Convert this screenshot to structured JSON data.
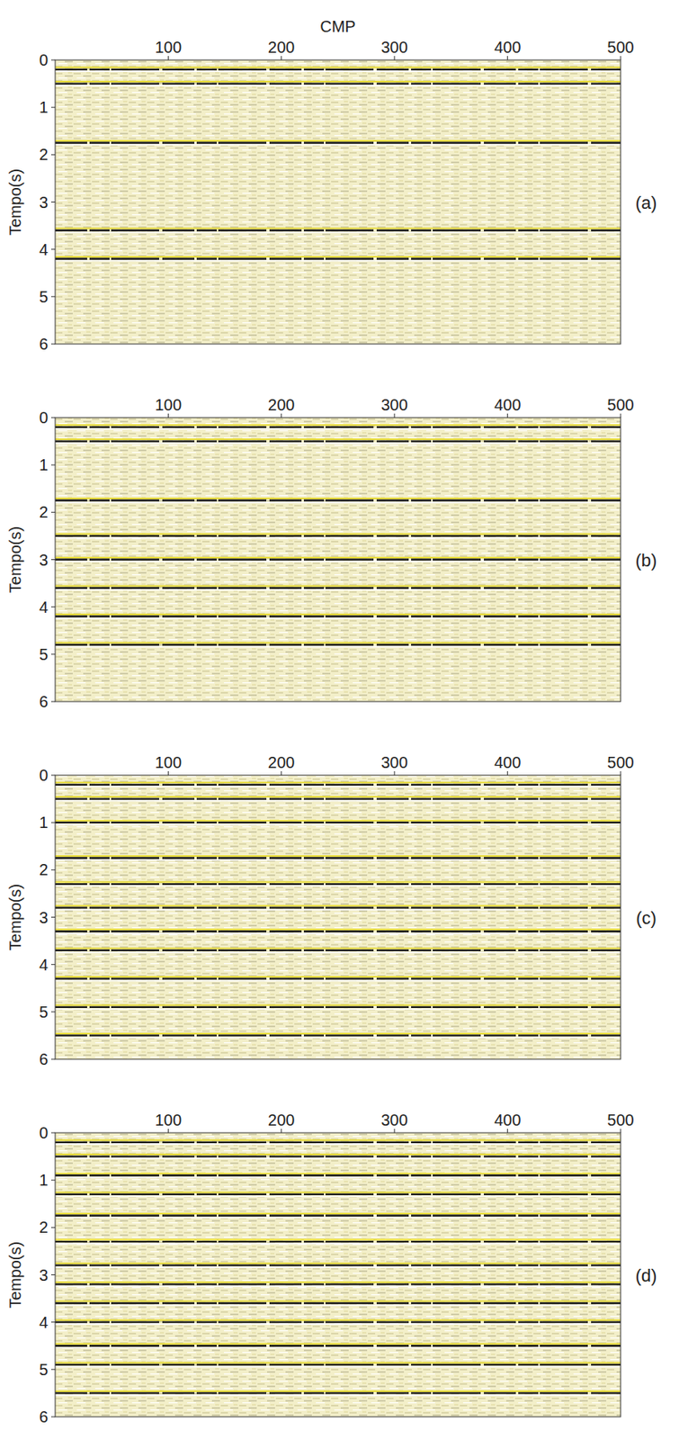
{
  "chart_data": [
    {
      "type": "seismic",
      "panel_label": "(a)",
      "x_label": "CMP",
      "y_label": "Tempo(s)",
      "xlim": [
        0,
        500
      ],
      "xticks": [
        100,
        200,
        300,
        400,
        500
      ],
      "ylim": [
        0,
        6
      ],
      "yticks": [
        0,
        1,
        2,
        3,
        4,
        5,
        6
      ],
      "reflectors": [
        0.2,
        0.5,
        1.75,
        3.6,
        4.2
      ]
    },
    {
      "type": "seismic",
      "panel_label": "(b)",
      "y_label": "Tempo(s)",
      "xlim": [
        0,
        500
      ],
      "xticks": [
        100,
        200,
        300,
        400,
        500
      ],
      "ylim": [
        0,
        6
      ],
      "yticks": [
        0,
        1,
        2,
        3,
        4,
        5,
        6
      ],
      "reflectors": [
        0.2,
        0.5,
        1.75,
        2.5,
        3.0,
        3.6,
        4.2,
        4.8
      ]
    },
    {
      "type": "seismic",
      "panel_label": "(c)",
      "y_label": "Tempo(s)",
      "xlim": [
        0,
        500
      ],
      "xticks": [
        100,
        200,
        300,
        400,
        500
      ],
      "ylim": [
        0,
        6
      ],
      "yticks": [
        0,
        1,
        2,
        3,
        4,
        5,
        6
      ],
      "reflectors": [
        0.2,
        0.5,
        1.0,
        1.75,
        2.3,
        2.8,
        3.3,
        3.7,
        4.3,
        4.9,
        5.5
      ]
    },
    {
      "type": "seismic",
      "panel_label": "(d)",
      "y_label": "Tempo(s)",
      "xlim": [
        0,
        500
      ],
      "xticks": [
        100,
        200,
        300,
        400,
        500
      ],
      "ylim": [
        0,
        6
      ],
      "yticks": [
        0,
        1,
        2,
        3,
        4,
        5,
        6
      ],
      "reflectors": [
        0.2,
        0.5,
        0.9,
        1.3,
        1.75,
        2.3,
        2.8,
        3.2,
        3.6,
        4.0,
        4.5,
        4.9,
        5.5
      ]
    }
  ]
}
